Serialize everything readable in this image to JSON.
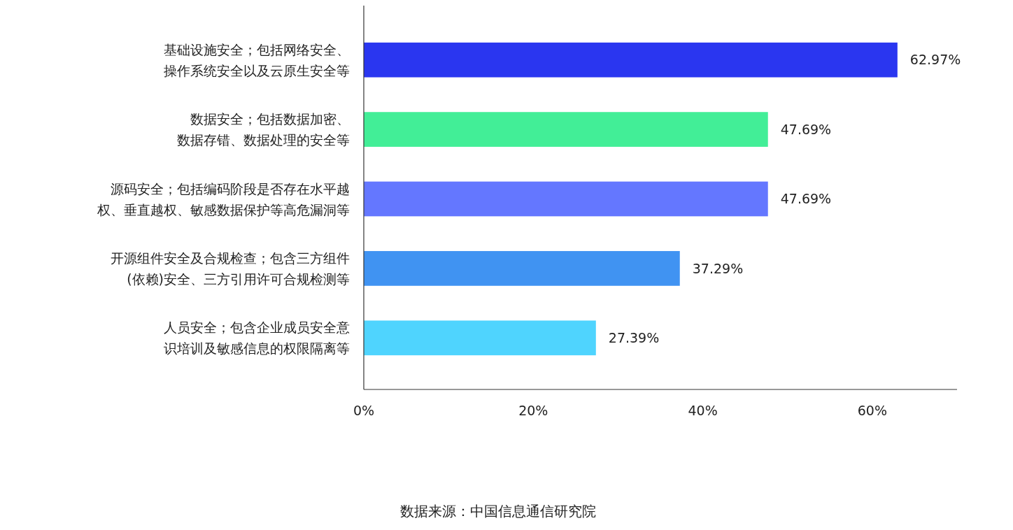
{
  "chart_data": {
    "type": "bar",
    "orientation": "horizontal",
    "categories": [
      "基础设施安全；包括网络安全、操作系统安全以及云原生安全等",
      "数据安全；包括数据加密、数据存错、数据处理的安全等",
      "源码安全；包括编码阶段是否存在水平越权、垂直越权、敏感数据保护等高危漏洞等",
      "开源组件安全及合规检查；包含三方组件(依赖)安全、三方引用许可合规检测等",
      "人员安全；包含企业成员安全意识培训及敏感信息的权限隔离等"
    ],
    "values": [
      62.97,
      47.69,
      47.69,
      37.29,
      27.39
    ],
    "colors": [
      "#2a36f0",
      "#42ee97",
      "#6477ff",
      "#4093f2",
      "#4fd4fe"
    ],
    "value_labels": [
      "62.97%",
      "47.69%",
      "47.69%",
      "37.29%",
      "27.39%"
    ],
    "xlim": [
      0,
      70
    ],
    "xticks": [
      {
        "value": 0,
        "label": "0%"
      },
      {
        "value": 20,
        "label": "20%"
      },
      {
        "value": 40,
        "label": "40%"
      },
      {
        "value": 60,
        "label": "60%"
      }
    ],
    "grid": false,
    "annotations": [
      "数据来源：中国信息通信研究院"
    ]
  }
}
